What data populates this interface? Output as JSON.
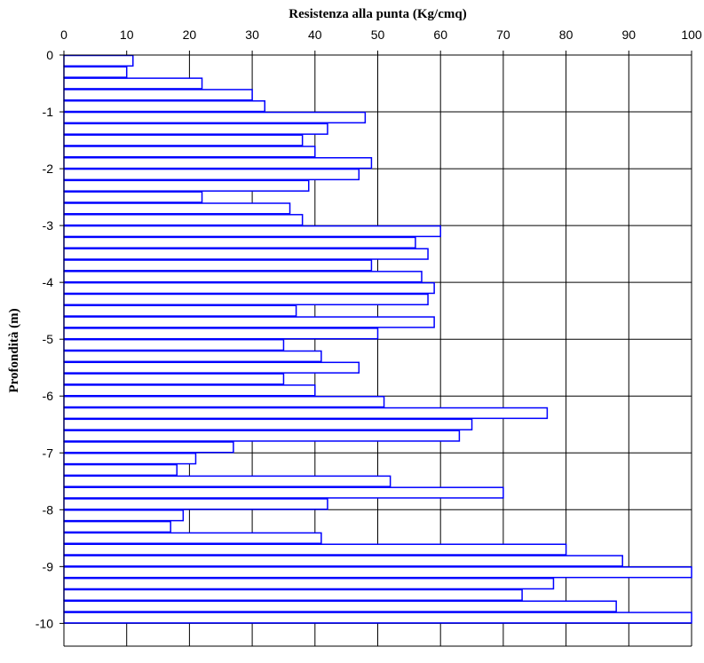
{
  "chart_data": {
    "type": "bar",
    "orientation": "horizontal",
    "title": "",
    "xlabel": "Resistenza alla punta (Kg/cmq)",
    "ylabel": "Profondità (m)",
    "xlim": [
      0,
      100
    ],
    "ylim": [
      -10.4,
      0
    ],
    "x_ticks": [
      0,
      10,
      20,
      30,
      40,
      50,
      60,
      70,
      80,
      90,
      100
    ],
    "y_ticks": [
      0,
      -1,
      -2,
      -3,
      -4,
      -5,
      -6,
      -7,
      -8,
      -9,
      -10
    ],
    "x_axis_position": "top",
    "grid": true,
    "bar_color": "#0000ff",
    "bar_fill": "#ffffff",
    "depth_step": 0.2,
    "values": [
      11,
      10,
      22,
      30,
      32,
      48,
      42,
      38,
      40,
      49,
      47,
      39,
      22,
      36,
      38,
      60,
      56,
      58,
      49,
      57,
      59,
      58,
      37,
      59,
      50,
      35,
      41,
      47,
      35,
      40,
      51,
      77,
      65,
      63,
      27,
      21,
      18,
      52,
      70,
      42,
      19,
      17,
      41,
      80,
      89,
      100,
      78,
      73,
      88,
      100
    ]
  }
}
